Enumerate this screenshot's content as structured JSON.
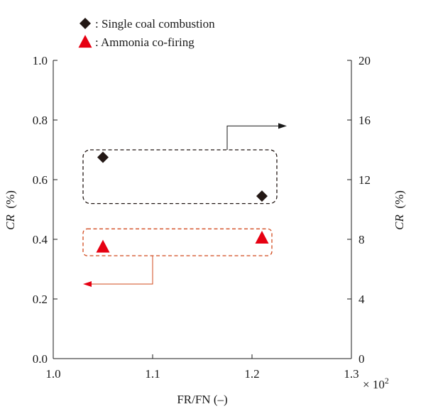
{
  "chart_data": {
    "type": "scatter",
    "xlabel": "FR/FN  (–)",
    "x_multiplier": "× 10",
    "x_multiplier_exp": "2",
    "ylabel_left": "CR",
    "ylabel_left_unit": "  (%)",
    "ylabel_right": "CR",
    "ylabel_right_unit": "  (%)",
    "xlim": [
      1.0,
      1.3
    ],
    "ylim_left": [
      0.0,
      1.0
    ],
    "ylim_right": [
      0,
      20
    ],
    "x_ticks": [
      "1.0",
      "1.1",
      "1.2",
      "1.3"
    ],
    "y_left_ticks": [
      "0.0",
      "0.2",
      "0.4",
      "0.6",
      "0.8",
      "1.0"
    ],
    "y_right_ticks": [
      "0",
      "4",
      "8",
      "12",
      "16",
      "20"
    ],
    "legend": {
      "placement": "top-left",
      "entries": [
        {
          "label": ": Single coal combustion",
          "marker": "diamond",
          "color": "#231815"
        },
        {
          "label": ": Ammonia co-firing",
          "marker": "triangle",
          "color": "#e60012"
        }
      ]
    },
    "series": [
      {
        "label": "Single coal combustion",
        "axis": "right",
        "marker": "diamond",
        "color": "#231815",
        "box_color": "#231815",
        "points": [
          {
            "x": 1.05,
            "y": 13.5
          },
          {
            "x": 1.21,
            "y": 10.9
          }
        ]
      },
      {
        "label": "Ammonia co-firing",
        "axis": "left",
        "marker": "triangle",
        "color": "#e60012",
        "box_color": "#d24a1e",
        "points": [
          {
            "x": 1.05,
            "y": 0.375
          },
          {
            "x": 1.21,
            "y": 0.405
          }
        ]
      }
    ],
    "annotations": [
      {
        "type": "group-box",
        "series": 0,
        "x_range": [
          1.03,
          1.225
        ],
        "y_range": [
          10.4,
          14.0
        ],
        "axis": "right",
        "arrow_to": "right-axis"
      },
      {
        "type": "group-box",
        "series": 1,
        "x_range": [
          1.03,
          1.22
        ],
        "y_range": [
          0.345,
          0.435
        ],
        "axis": "left",
        "arrow_to": "left-axis"
      }
    ],
    "grid": false
  }
}
